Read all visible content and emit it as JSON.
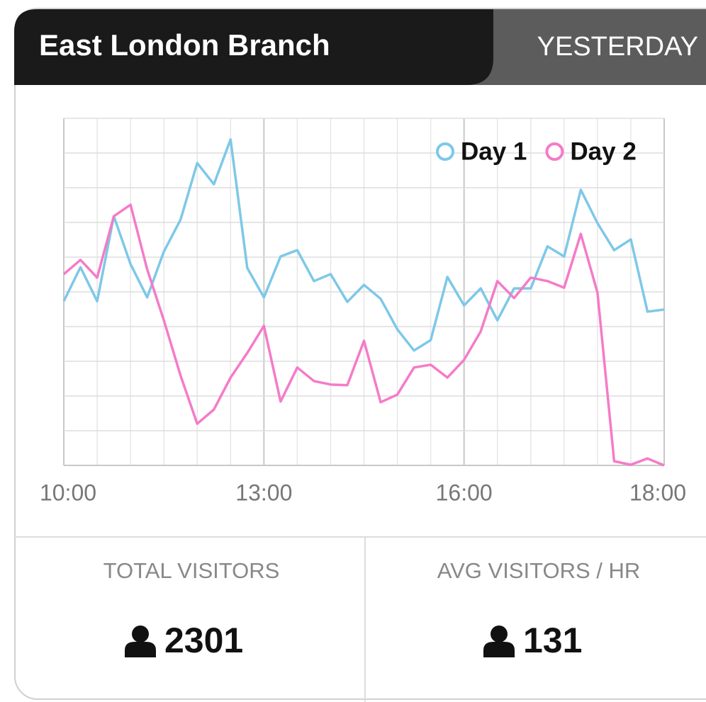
{
  "header": {
    "title": "East London Branch",
    "tab": "YESTERDAY"
  },
  "chart_data": {
    "type": "line",
    "categories": [
      "10:00",
      null,
      null,
      null,
      null,
      null,
      null,
      null,
      null,
      null,
      null,
      null,
      "13:00",
      null,
      null,
      null,
      null,
      null,
      null,
      null,
      null,
      null,
      null,
      null,
      "16:00",
      null,
      null,
      null,
      null,
      null,
      null,
      null,
      null,
      null,
      null,
      null,
      "18:00"
    ],
    "series": [
      {
        "name": "Day 1",
        "color": "#7ec8e8",
        "values": [
          47.3,
          57.1,
          47.3,
          71.8,
          58,
          48.4,
          61.6,
          70.8,
          87.1,
          81,
          93.9,
          56.9,
          48.4,
          60.2,
          62,
          53.1,
          55.1,
          47.1,
          52,
          48,
          39.2,
          33.1,
          36.1,
          54.3,
          46.1,
          51,
          41.8,
          51,
          51,
          63.1,
          60.2,
          79.4,
          69.8,
          62,
          65.1,
          44.3,
          44.9
        ]
      },
      {
        "name": "Day 2",
        "color": "#f57bc8",
        "values": [
          55.1,
          59.2,
          54.1,
          71.8,
          75.1,
          56.5,
          41.8,
          25.9,
          12,
          16.1,
          25.3,
          32.4,
          40.2,
          18.4,
          28.2,
          24.3,
          23.3,
          23.1,
          35.9,
          18.2,
          20.4,
          28.2,
          29,
          25.3,
          30.4,
          38.6,
          53.1,
          48.2,
          54.1,
          53.1,
          51.2,
          66.7,
          49.8,
          1.2,
          0.2,
          2,
          0
        ]
      }
    ],
    "ylim": [
      0,
      100
    ],
    "yticks": [
      0,
      10,
      20,
      30,
      40,
      50,
      60,
      70,
      80,
      90,
      100
    ],
    "grid": true,
    "legend": "upper right"
  },
  "stats": [
    {
      "label": "TOTAL VISITORS",
      "value": 2301
    },
    {
      "label": "AVG VISITORS / HR",
      "value": 131
    }
  ]
}
